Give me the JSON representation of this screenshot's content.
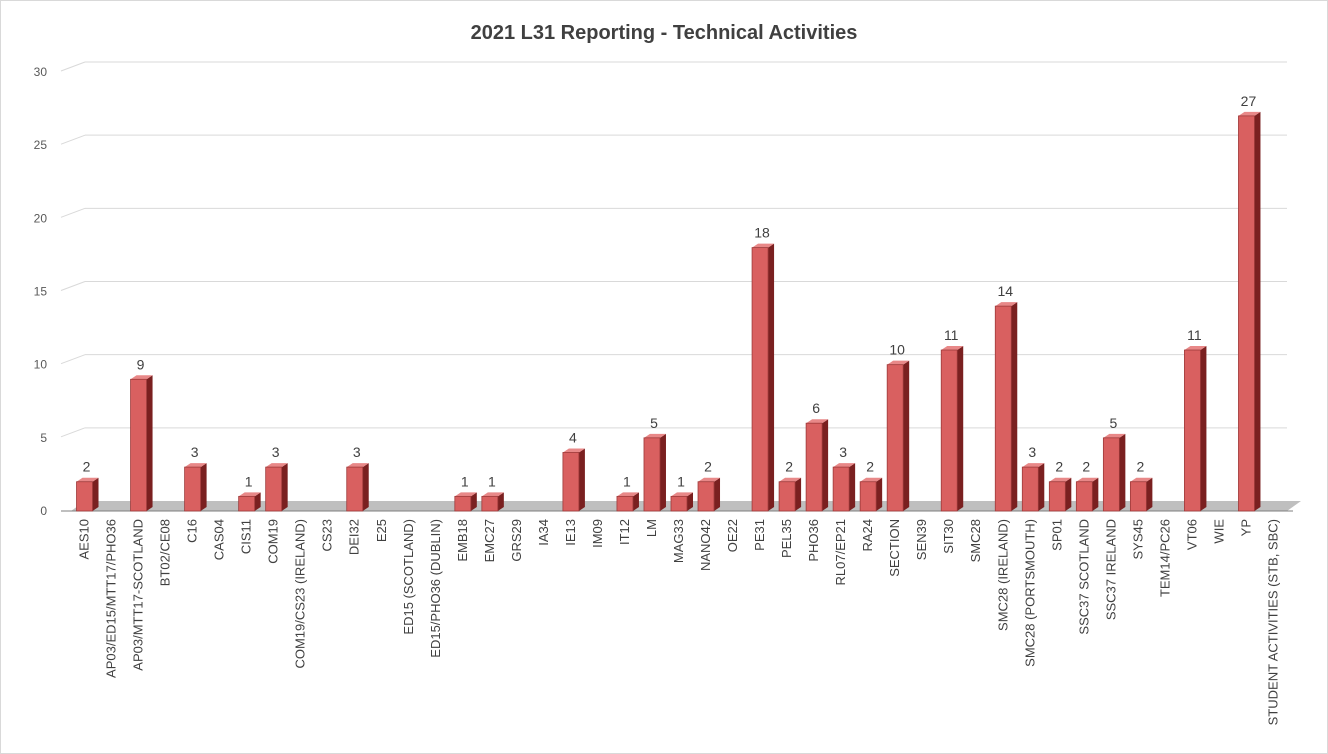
{
  "chart_data": {
    "type": "bar",
    "title": "2021 L31 Reporting - Technical Activities",
    "ylim": [
      0,
      30
    ],
    "yticks": [
      0,
      5,
      10,
      15,
      20,
      25,
      30
    ],
    "grid": true,
    "style": "3d-column",
    "colors": {
      "bar_front": "#d96060",
      "bar_side": "#7a2020",
      "bar_top": "#e88888",
      "floor": "#a6a6a6",
      "grid": "#d9d9d9"
    },
    "categories": [
      "AES10",
      "AP03/ED15/MTT17/PHO36",
      "AP03/MTT17-SCOTLAND",
      "BT02/CE08",
      "C16",
      "CAS04",
      "CIS11",
      "COM19",
      "COM19/CS23 (IRELAND)",
      "CS23",
      "DEI32",
      "E25",
      "ED15 (SCOTLAND)",
      "ED15/PHO36 (DUBLIN)",
      "EMB18",
      "EMC27",
      "GRS29",
      "IA34",
      "IE13",
      "IM09",
      "IT12",
      "LM",
      "MAG33",
      "NANO42",
      "OE22",
      "PE31",
      "PEL35",
      "PHO36",
      "RL07/EP21",
      "RA24",
      "SECTION",
      "SEN39",
      "SIT30",
      "SMC28",
      "SMC28 (IRELAND)",
      "SMC28 (PORTSMOUTH)",
      "SP01",
      "SSC37 SCOTLAND",
      "SSC37 IRELAND",
      "SYS45",
      "TEM14/PC26",
      "VT06",
      "WIE",
      "YP",
      "STUDENT ACTIVITIES (STB, SBC)"
    ],
    "values": [
      2,
      0,
      9,
      0,
      3,
      0,
      1,
      3,
      0,
      0,
      3,
      0,
      0,
      0,
      1,
      1,
      0,
      0,
      4,
      0,
      1,
      5,
      1,
      2,
      0,
      18,
      2,
      6,
      3,
      2,
      10,
      0,
      11,
      0,
      14,
      3,
      2,
      2,
      5,
      2,
      0,
      11,
      0,
      27,
      0
    ],
    "labels_shown": [
      true,
      false,
      true,
      false,
      true,
      false,
      true,
      true,
      false,
      false,
      true,
      false,
      false,
      false,
      true,
      true,
      false,
      false,
      true,
      false,
      true,
      true,
      true,
      true,
      false,
      true,
      true,
      true,
      true,
      true,
      true,
      false,
      true,
      false,
      true,
      true,
      true,
      true,
      true,
      true,
      false,
      true,
      false,
      true,
      false
    ]
  }
}
